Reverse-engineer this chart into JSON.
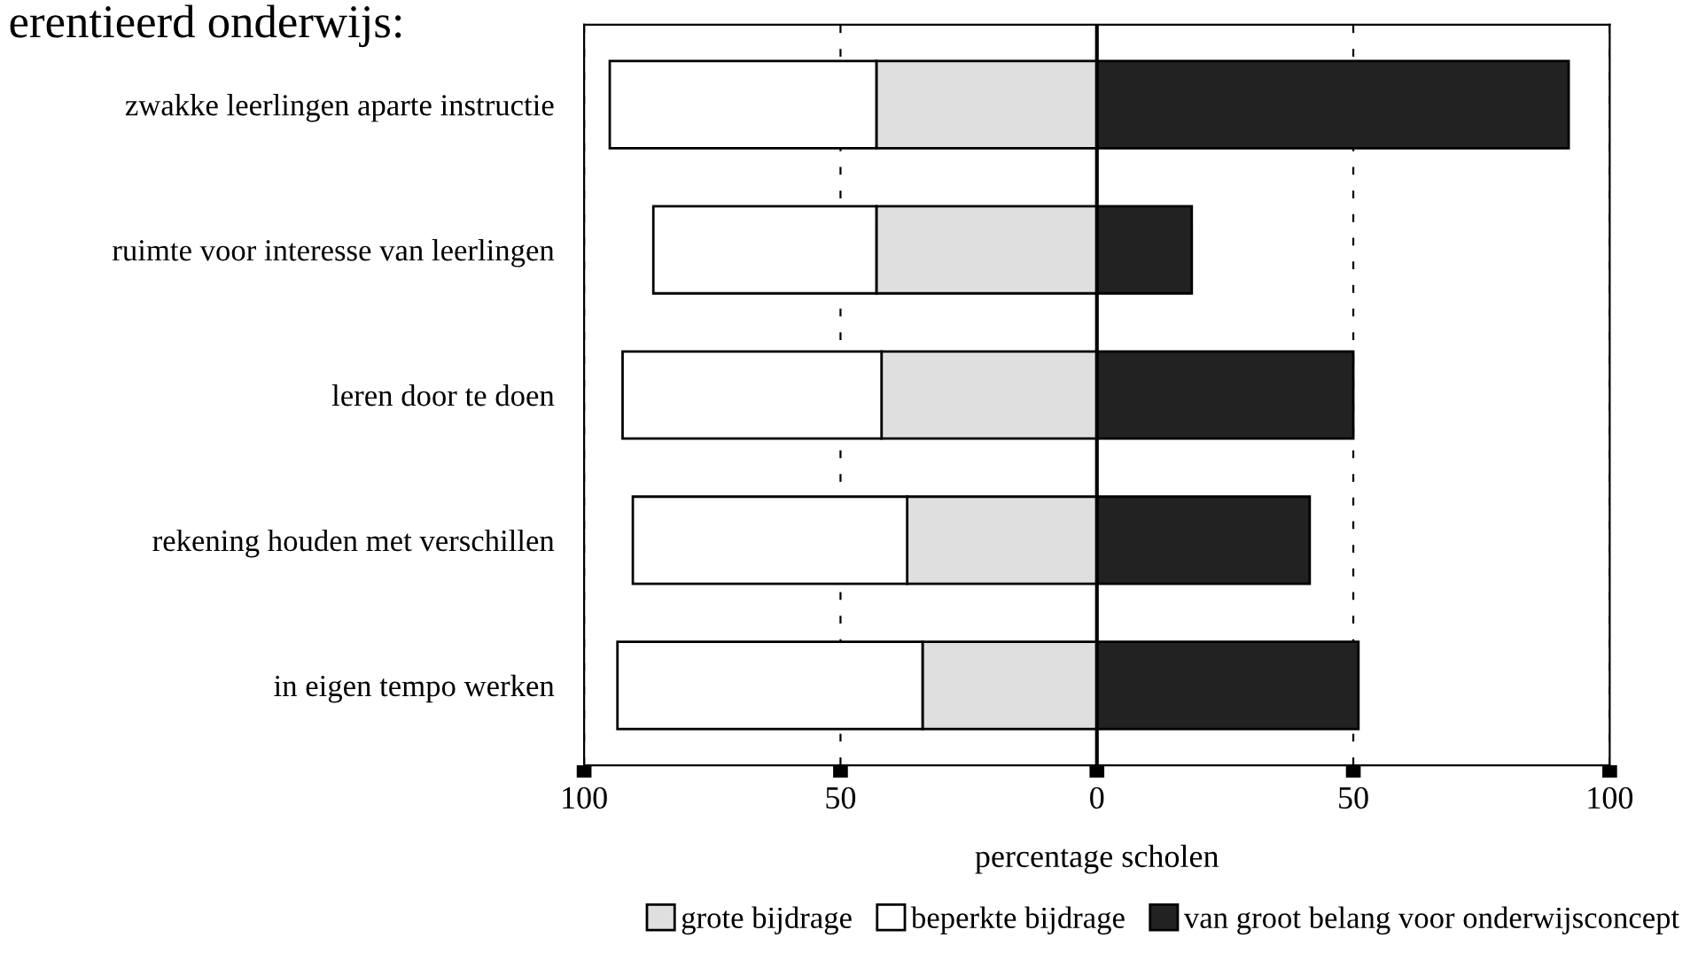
{
  "chart_data": {
    "type": "bar",
    "orientation": "horizontal",
    "stacked": true,
    "title": "erentieerd onderwijs:",
    "xlabel": "percentage scholen",
    "categories": [
      "zwakke leerlingen aparte instructie",
      "ruimte voor interesse van leerlingen",
      "leren door te doen",
      "rekening houden met verschillen",
      "in eigen tempo werken"
    ],
    "series": [
      {
        "name": "grote bijdrage",
        "color": "#dfdfdf",
        "values": [
          -43,
          -43,
          -42,
          -37,
          -34
        ]
      },
      {
        "name": "beperkte bijdrage",
        "color": "#ffffff",
        "values": [
          -52,
          -43.5,
          -50.5,
          -53.5,
          -59.5
        ]
      },
      {
        "name": "van groot belang voor onderwijsconcept",
        "color": "#222222",
        "values": [
          92,
          18.5,
          50,
          41.5,
          51
        ]
      }
    ],
    "xlim": [
      -100,
      100
    ],
    "xticks": [
      {
        "value": -100,
        "label": "100"
      },
      {
        "value": -50,
        "label": "50"
      },
      0,
      50,
      {
        "value": 100,
        "label": "100"
      }
    ],
    "ref_lines": [
      {
        "axis": "x",
        "value": 0,
        "color": "#000000",
        "line_style": "solid"
      }
    ],
    "grid": "x",
    "legend": "bottom"
  }
}
